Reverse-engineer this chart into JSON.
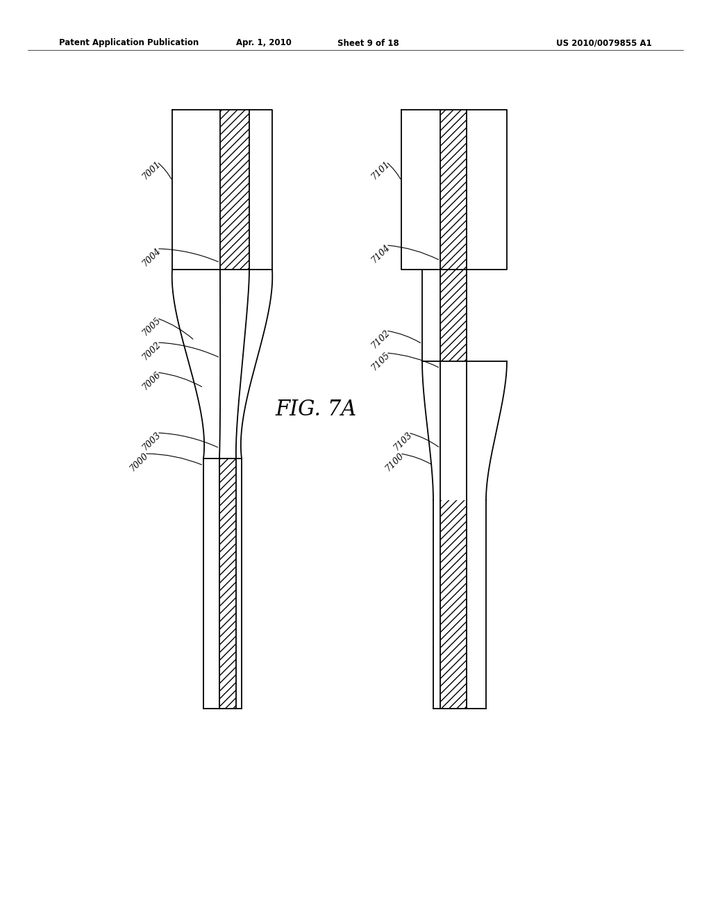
{
  "bg_color": "#ffffff",
  "line_color": "#000000",
  "header_text": "Patent Application Publication",
  "header_date": "Apr. 1, 2010",
  "header_sheet": "Sheet 9 of 18",
  "header_patent": "US 2010/0079855 A1",
  "fig_label": "FIG. 7A"
}
